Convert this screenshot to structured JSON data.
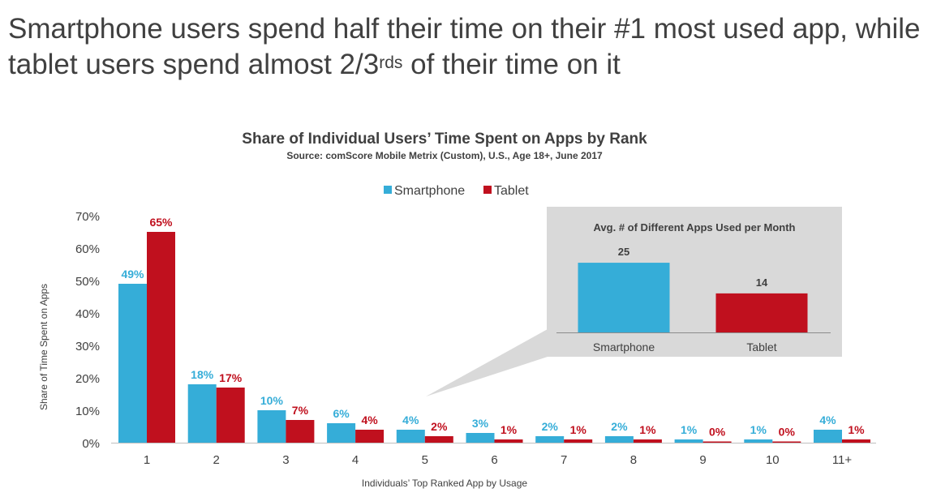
{
  "headline": {
    "line1": "Smartphone users spend half their time on their #1 most used app, while",
    "line2_a": "tablet users spend almost 2/3",
    "line2_sup": "rds",
    "line2_b": " of their time on it"
  },
  "colors": {
    "smartphone": "#35ADD8",
    "tablet": "#C0101E",
    "axis_text": "#404040",
    "inset_bg": "#D9D9D9"
  },
  "chart_data": [
    {
      "type": "bar",
      "title": "Share of Individual Users’ Time Spent on Apps by Rank",
      "subtitle": "Source: comScore Mobile Metrix (Custom), U.S., Age 18+, June 2017",
      "xlabel": "Individuals’ Top Ranked App by Usage",
      "ylabel": "Share of Time Spent on Apps",
      "ylim": [
        0,
        70
      ],
      "yticks": [
        "0%",
        "10%",
        "20%",
        "30%",
        "40%",
        "50%",
        "60%",
        "70%"
      ],
      "categories": [
        "1",
        "2",
        "3",
        "4",
        "5",
        "6",
        "7",
        "8",
        "9",
        "10",
        "11+"
      ],
      "series": [
        {
          "name": "Smartphone",
          "values": [
            49,
            18,
            10,
            6,
            4,
            3,
            2,
            2,
            1,
            1,
            4
          ],
          "labels": [
            "49%",
            "18%",
            "10%",
            "6%",
            "4%",
            "3%",
            "2%",
            "2%",
            "1%",
            "1%",
            "4%"
          ]
        },
        {
          "name": "Tablet",
          "values": [
            65,
            17,
            7,
            4,
            2,
            1,
            1,
            1,
            0,
            0,
            1
          ],
          "labels": [
            "65%",
            "17%",
            "7%",
            "4%",
            "2%",
            "1%",
            "1%",
            "1%",
            "0%",
            "0%",
            "1%"
          ]
        }
      ],
      "legend": "top-center"
    },
    {
      "type": "bar",
      "title": "Avg. # of Different Apps Used per Month",
      "categories": [
        "Smartphone",
        "Tablet"
      ],
      "values": [
        25,
        14
      ],
      "labels": [
        "25",
        "14"
      ]
    }
  ]
}
